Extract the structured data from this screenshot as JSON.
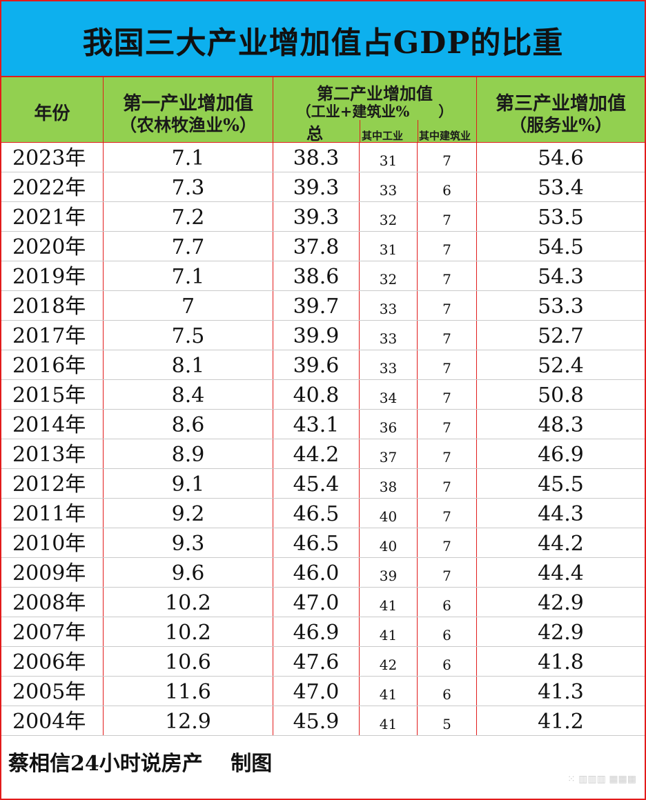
{
  "title": "我国三大产业增加值占GDP的比重",
  "header": {
    "year": "年份",
    "primary_line1": "第一产业增加值",
    "primary_line2": "（农林牧渔业%）",
    "secondary_line1": "第二产业增加值",
    "secondary_line2": "（工业+建筑业%　　）",
    "secondary_total": "总",
    "secondary_industry": "其中工业",
    "secondary_construction": "其中建筑业",
    "tertiary_line1": "第三产业增加值",
    "tertiary_line2": "（服务业%）"
  },
  "rows": [
    {
      "year": "2023年",
      "primary": "7.1",
      "secondary": "38.3",
      "industry": "31",
      "construction": "7",
      "tertiary": "54.6"
    },
    {
      "year": "2022年",
      "primary": "7.3",
      "secondary": "39.3",
      "industry": "33",
      "construction": "6",
      "tertiary": "53.4"
    },
    {
      "year": "2021年",
      "primary": "7.2",
      "secondary": "39.3",
      "industry": "32",
      "construction": "7",
      "tertiary": "53.5"
    },
    {
      "year": "2020年",
      "primary": "7.7",
      "secondary": "37.8",
      "industry": "31",
      "construction": "7",
      "tertiary": "54.5"
    },
    {
      "year": "2019年",
      "primary": "7.1",
      "secondary": "38.6",
      "industry": "32",
      "construction": "7",
      "tertiary": "54.3"
    },
    {
      "year": "2018年",
      "primary": "7",
      "secondary": "39.7",
      "industry": "33",
      "construction": "7",
      "tertiary": "53.3"
    },
    {
      "year": "2017年",
      "primary": "7.5",
      "secondary": "39.9",
      "industry": "33",
      "construction": "7",
      "tertiary": "52.7"
    },
    {
      "year": "2016年",
      "primary": "8.1",
      "secondary": "39.6",
      "industry": "33",
      "construction": "7",
      "tertiary": "52.4"
    },
    {
      "year": "2015年",
      "primary": "8.4",
      "secondary": "40.8",
      "industry": "34",
      "construction": "7",
      "tertiary": "50.8"
    },
    {
      "year": "2014年",
      "primary": "8.6",
      "secondary": "43.1",
      "industry": "36",
      "construction": "7",
      "tertiary": "48.3"
    },
    {
      "year": "2013年",
      "primary": "8.9",
      "secondary": "44.2",
      "industry": "37",
      "construction": "7",
      "tertiary": "46.9"
    },
    {
      "year": "2012年",
      "primary": "9.1",
      "secondary": "45.4",
      "industry": "38",
      "construction": "7",
      "tertiary": "45.5"
    },
    {
      "year": "2011年",
      "primary": "9.2",
      "secondary": "46.5",
      "industry": "40",
      "construction": "7",
      "tertiary": "44.3"
    },
    {
      "year": "2010年",
      "primary": "9.3",
      "secondary": "46.5",
      "industry": "40",
      "construction": "7",
      "tertiary": "44.2"
    },
    {
      "year": "2009年",
      "primary": "9.6",
      "secondary": "46.0",
      "industry": "39",
      "construction": "7",
      "tertiary": "44.4"
    },
    {
      "year": "2008年",
      "primary": "10.2",
      "secondary": "47.0",
      "industry": "41",
      "construction": "6",
      "tertiary": "42.9"
    },
    {
      "year": "2007年",
      "primary": "10.2",
      "secondary": "46.9",
      "industry": "41",
      "construction": "6",
      "tertiary": "42.9"
    },
    {
      "year": "2006年",
      "primary": "10.6",
      "secondary": "47.6",
      "industry": "42",
      "construction": "6",
      "tertiary": "41.8"
    },
    {
      "year": "2005年",
      "primary": "11.6",
      "secondary": "47.0",
      "industry": "41",
      "construction": "6",
      "tertiary": "41.3"
    },
    {
      "year": "2004年",
      "primary": "12.9",
      "secondary": "45.9",
      "industry": "41",
      "construction": "5",
      "tertiary": "41.2"
    }
  ],
  "footer": "蔡相信24小时说房产　 制图",
  "colors": {
    "title_bg": "#0db0ee",
    "header_bg": "#92d050",
    "grid_line": "#e21b1b"
  }
}
